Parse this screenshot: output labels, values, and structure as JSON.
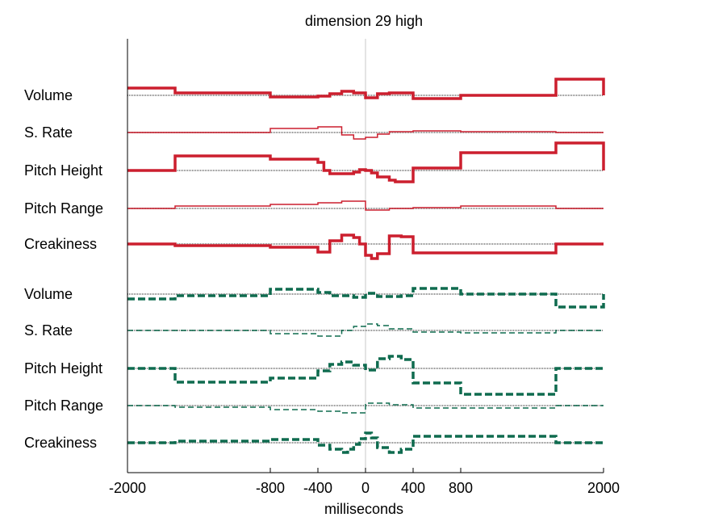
{
  "chart_data": {
    "type": "line",
    "title": "dimension 29 high",
    "xlabel": "milliseconds",
    "ylabel": "",
    "xlim": [
      -2000,
      2000
    ],
    "xticks": [
      -2000,
      -800,
      -400,
      0,
      400,
      800,
      2000
    ],
    "xtick_labels": [
      "-2000",
      "-800",
      "-400",
      "0",
      "400",
      "800",
      "2000"
    ],
    "grid": false,
    "colors": {
      "high": "#cc1f2e",
      "low": "#0f6b4f",
      "baseline": "#888888",
      "zero_line": "#c8c8c8",
      "axis": "#000000"
    },
    "series": [
      {
        "label": "Volume",
        "group": "high",
        "style": "solid",
        "stroke": "thick",
        "baseline": 118,
        "x": [
          -2000,
          -1600,
          -800,
          -400,
          -300,
          -200,
          -100,
          0,
          100,
          200,
          400,
          800,
          1600,
          2000
        ],
        "y": [
          9,
          3,
          -2,
          -1,
          2,
          5,
          3,
          -3,
          2,
          3,
          -4,
          0,
          20,
          0
        ]
      },
      {
        "label": "S. Rate",
        "group": "high",
        "style": "solid",
        "stroke": "thin",
        "baseline": 164,
        "x": [
          -2000,
          -1600,
          -800,
          -400,
          -200,
          -100,
          0,
          100,
          200,
          400,
          800,
          1600,
          2000
        ],
        "y": [
          0,
          0,
          5,
          7,
          -3,
          -8,
          -6,
          -2,
          1,
          2,
          1,
          0,
          0
        ]
      },
      {
        "label": "Pitch Height",
        "group": "high",
        "style": "solid",
        "stroke": "thick",
        "baseline": 211,
        "x": [
          -2000,
          -1600,
          -800,
          -400,
          -350,
          -300,
          -100,
          -50,
          0,
          50,
          100,
          200,
          250,
          400,
          800,
          1600,
          2000
        ],
        "y": [
          0,
          18,
          14,
          10,
          0,
          -4,
          -2,
          1,
          0,
          -3,
          -8,
          -12,
          -14,
          3,
          22,
          34,
          0
        ]
      },
      {
        "label": "Pitch Range",
        "group": "high",
        "style": "solid",
        "stroke": "thin",
        "baseline": 258,
        "x": [
          -2000,
          -1600,
          -800,
          -400,
          -200,
          0,
          200,
          400,
          800,
          1600,
          2000
        ],
        "y": [
          0,
          3,
          5,
          7,
          9,
          -2,
          0,
          1,
          3,
          0,
          0
        ]
      },
      {
        "label": "Creakiness",
        "group": "high",
        "style": "solid",
        "stroke": "thick",
        "baseline": 302,
        "x": [
          -2000,
          -1600,
          -800,
          -400,
          -300,
          -200,
          -100,
          -50,
          0,
          50,
          100,
          200,
          300,
          400,
          1600,
          2000
        ],
        "y": [
          0,
          -2,
          -4,
          -10,
          4,
          11,
          8,
          0,
          -14,
          -18,
          -12,
          10,
          9,
          -11,
          0,
          0
        ]
      },
      {
        "label": "Volume",
        "group": "low",
        "style": "dashed",
        "stroke": "thick",
        "baseline": 364,
        "x": [
          -2000,
          -1750,
          -1600,
          -800,
          -400,
          -300,
          -100,
          0,
          100,
          300,
          400,
          800,
          1600,
          2000
        ],
        "y": [
          -6,
          -6,
          -2,
          6,
          2,
          -2,
          -4,
          1,
          -3,
          -2,
          7,
          0,
          -16,
          0
        ]
      },
      {
        "label": "S. Rate",
        "group": "low",
        "style": "dashed",
        "stroke": "thin",
        "baseline": 409,
        "x": [
          -2000,
          -1600,
          -800,
          -400,
          -200,
          -100,
          0,
          100,
          200,
          400,
          800,
          1600,
          2000
        ],
        "y": [
          0,
          0,
          -4,
          -7,
          0,
          5,
          8,
          6,
          2,
          -2,
          -3,
          0,
          0
        ]
      },
      {
        "label": "Pitch Height",
        "group": "low",
        "style": "dashed",
        "stroke": "thick",
        "baseline": 456,
        "x": [
          -2000,
          -1600,
          -800,
          -400,
          -300,
          -200,
          -100,
          0,
          100,
          200,
          300,
          400,
          800,
          1600,
          2000
        ],
        "y": [
          0,
          -17,
          -12,
          -3,
          5,
          8,
          4,
          -2,
          12,
          15,
          11,
          -18,
          -32,
          0,
          0
        ]
      },
      {
        "label": "Pitch Range",
        "group": "low",
        "style": "dashed",
        "stroke": "thin",
        "baseline": 502,
        "x": [
          -2000,
          -1600,
          -800,
          -400,
          -200,
          0,
          200,
          400,
          800,
          1600,
          2000
        ],
        "y": [
          0,
          -2,
          -5,
          -7,
          -9,
          3,
          1,
          -3,
          -3,
          0,
          0
        ]
      },
      {
        "label": "Creakiness",
        "group": "low",
        "style": "dashed",
        "stroke": "thick",
        "baseline": 548,
        "x": [
          -2000,
          -1600,
          -800,
          -400,
          -300,
          -200,
          -150,
          -100,
          -50,
          0,
          50,
          100,
          200,
          300,
          400,
          1600,
          2000
        ],
        "y": [
          0,
          2,
          4,
          -3,
          -8,
          -12,
          -8,
          -2,
          5,
          12,
          6,
          -6,
          -12,
          -8,
          8,
          0,
          0
        ]
      }
    ]
  }
}
